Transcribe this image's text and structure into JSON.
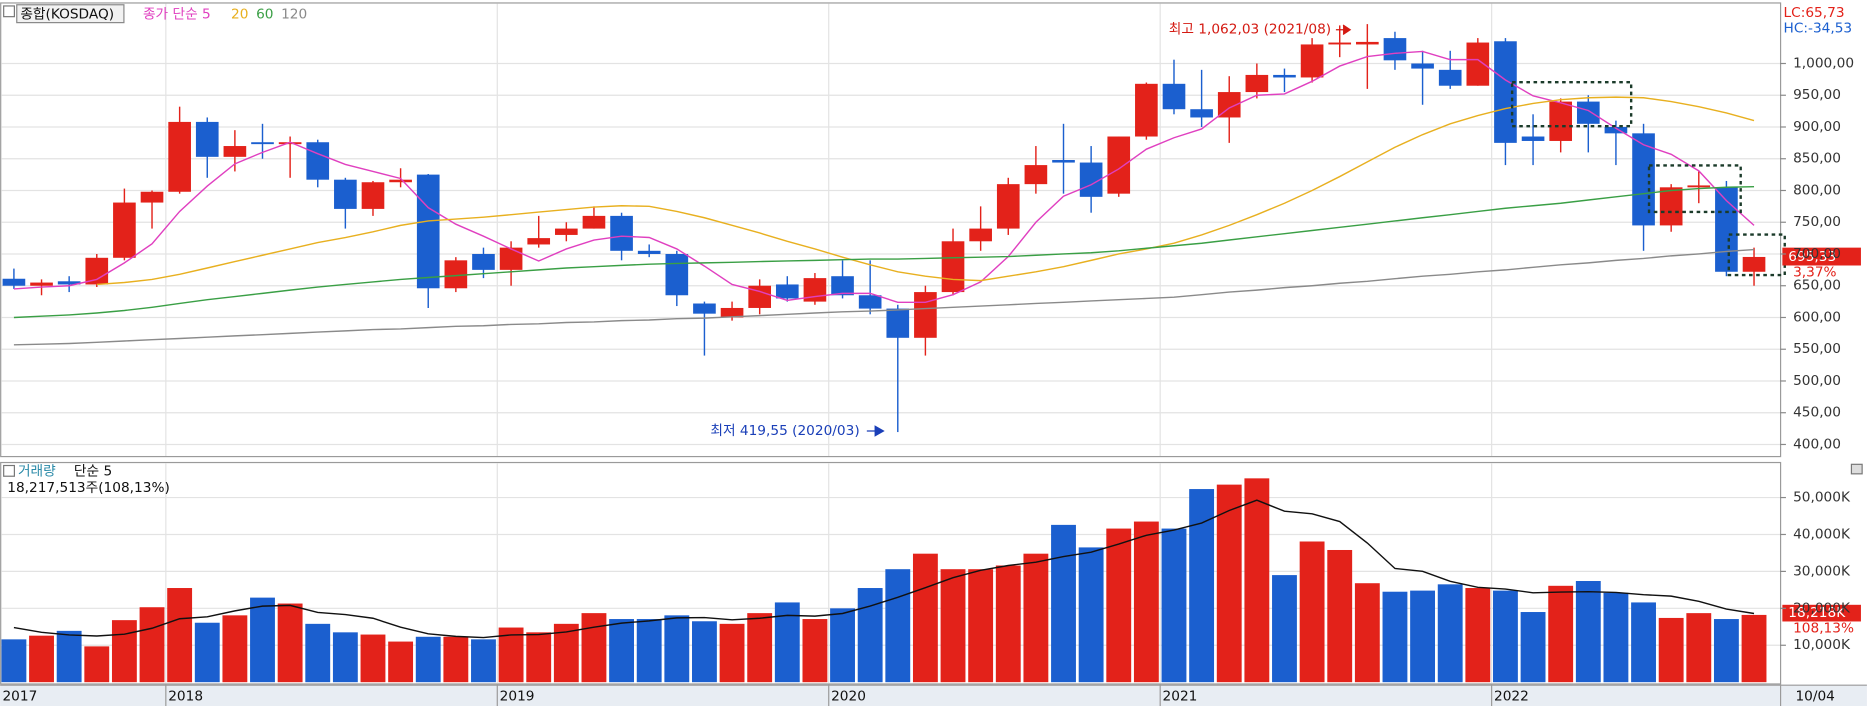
{
  "chart_data": [
    {
      "type": "candlestick",
      "title": "종합(KOSDAQ)",
      "categories": [
        "2017",
        null,
        null,
        null,
        null,
        null,
        "2018",
        null,
        null,
        null,
        null,
        null,
        null,
        null,
        null,
        null,
        null,
        null,
        "2019",
        null,
        null,
        null,
        null,
        null,
        null,
        null,
        null,
        null,
        null,
        null,
        "2020",
        null,
        null,
        null,
        null,
        null,
        null,
        null,
        null,
        null,
        null,
        null,
        "2021",
        null,
        null,
        null,
        null,
        null,
        null,
        null,
        null,
        null,
        null,
        null,
        "2022",
        null,
        null,
        null,
        null,
        null,
        null,
        null,
        null,
        null
      ],
      "last_date": "10/04",
      "open": [
        661,
        650,
        657,
        652,
        694,
        781,
        798,
        908,
        853,
        876,
        873,
        876,
        817,
        771,
        813,
        825,
        646,
        700,
        675,
        715,
        730,
        740,
        760,
        705,
        700,
        622,
        600,
        615,
        652,
        625,
        665,
        635,
        614,
        568,
        640,
        720,
        740,
        810,
        848,
        844,
        795,
        885,
        968,
        928,
        915,
        955,
        982,
        978,
        1030,
        1030,
        1040,
        1000,
        990,
        965,
        1035,
        885,
        878,
        940,
        900,
        890,
        745,
        805,
        805,
        672
      ],
      "high": [
        677,
        660,
        665,
        700,
        803,
        800,
        932,
        915,
        895,
        905,
        885,
        880,
        820,
        815,
        835,
        826,
        695,
        710,
        720,
        760,
        750,
        775,
        765,
        715,
        705,
        625,
        625,
        660,
        665,
        670,
        690,
        690,
        620,
        650,
        740,
        775,
        820,
        870,
        905,
        870,
        885,
        970,
        1006,
        990,
        980,
        1000,
        992,
        1040,
        1060,
        1062.03,
        1050,
        1020,
        1020,
        1040,
        1040,
        920,
        945,
        950,
        910,
        905,
        810,
        830,
        815,
        710
      ],
      "low": [
        645,
        635,
        640,
        648,
        690,
        740,
        795,
        820,
        830,
        850,
        820,
        805,
        740,
        760,
        805,
        615,
        640,
        662,
        650,
        710,
        720,
        740,
        690,
        695,
        618,
        540,
        595,
        605,
        625,
        620,
        630,
        605,
        419.55,
        540,
        635,
        705,
        730,
        795,
        795,
        765,
        790,
        880,
        920,
        900,
        875,
        945,
        955,
        970,
        1010,
        960,
        990,
        935,
        960,
        965,
        840,
        840,
        860,
        860,
        840,
        705,
        735,
        780,
        665,
        650
      ],
      "close": [
        650,
        655,
        652,
        694,
        781,
        798,
        908,
        853,
        870,
        873,
        876,
        817,
        771,
        813,
        817,
        646,
        690,
        675,
        710,
        725,
        740,
        760,
        705,
        700,
        635,
        606,
        615,
        650,
        630,
        662,
        635,
        614,
        568,
        640,
        720,
        740,
        810,
        840,
        844,
        790,
        885,
        968,
        928,
        915,
        955,
        982,
        978,
        1030,
        1033,
        1034,
        1005,
        992,
        965,
        1033,
        875,
        878,
        940,
        905,
        890,
        745,
        805,
        808,
        672,
        695.33
      ],
      "up_color": "#e3221a",
      "down_color": "#1b5fcf",
      "series": [
        {
          "name": "종가 단순 5",
          "color": "#e040c0",
          "values": [
            645,
            648,
            650,
            660,
            686,
            716,
            767,
            807,
            842,
            860,
            876,
            858,
            841,
            830,
            819,
            773,
            747,
            728,
            708,
            689,
            708,
            722,
            728,
            726,
            708,
            681,
            652,
            641,
            627,
            633,
            638,
            638,
            624,
            624,
            636,
            656,
            696,
            750,
            791,
            809,
            834,
            865,
            883,
            897,
            930,
            950,
            952,
            972,
            996,
            1011,
            1016,
            1019,
            1006,
            1006,
            974,
            949,
            938,
            926,
            898,
            872,
            857,
            831,
            784,
            745
          ]
        },
        {
          "name": "20",
          "color": "#e8b020",
          "values": [
            null,
            null,
            null,
            652,
            655,
            660,
            668,
            678,
            688,
            698,
            708,
            718,
            726,
            735,
            745,
            752,
            755,
            758,
            762,
            766,
            770,
            774,
            776,
            775,
            767,
            757,
            745,
            733,
            720,
            708,
            695,
            683,
            672,
            665,
            660,
            658,
            665,
            672,
            680,
            690,
            700,
            708,
            717,
            730,
            745,
            762,
            780,
            800,
            822,
            845,
            868,
            888,
            905,
            918,
            929,
            937,
            943,
            946,
            947,
            946,
            940,
            932,
            922,
            910
          ]
        },
        {
          "name": "60",
          "color": "#3a9f45",
          "values": [
            600,
            602,
            604,
            607,
            611,
            616,
            622,
            628,
            633,
            638,
            643,
            648,
            652,
            656,
            660,
            663,
            666,
            669,
            672,
            675,
            678,
            680,
            682,
            684,
            685,
            686,
            687,
            688,
            689,
            690,
            691,
            692,
            692,
            693,
            694,
            695,
            696,
            698,
            700,
            702,
            705,
            709,
            713,
            717,
            722,
            727,
            732,
            737,
            742,
            747,
            752,
            757,
            762,
            767,
            772,
            776,
            780,
            785,
            790,
            795,
            800,
            803,
            805,
            806
          ]
        },
        {
          "name": "120",
          "color": "#8a8a8a",
          "values": [
            557,
            558,
            559,
            561,
            563,
            565,
            567,
            569,
            571,
            573,
            575,
            577,
            579,
            581,
            582,
            584,
            586,
            587,
            589,
            590,
            592,
            593,
            595,
            596,
            598,
            599,
            601,
            603,
            605,
            607,
            609,
            610,
            612,
            614,
            616,
            618,
            620,
            622,
            624,
            626,
            628,
            630,
            632,
            636,
            640,
            643,
            647,
            650,
            654,
            657,
            661,
            665,
            668,
            672,
            675,
            679,
            683,
            686,
            690,
            693,
            697,
            700,
            704,
            707
          ]
        }
      ],
      "ylim": [
        380,
        1100
      ],
      "yticks": [
        {
          "value": 400,
          "label": "400,00"
        },
        {
          "value": 450,
          "label": "450,00"
        },
        {
          "value": 500,
          "label": "500,00"
        },
        {
          "value": 550,
          "label": "550,00"
        },
        {
          "value": 600,
          "label": "600,00"
        },
        {
          "value": 650,
          "label": "650,00"
        },
        {
          "value": 700,
          "label": "700,00"
        },
        {
          "value": 750,
          "label": "750,00"
        },
        {
          "value": 800,
          "label": "800,00"
        },
        {
          "value": 850,
          "label": "850,00"
        },
        {
          "value": 900,
          "label": "900,00"
        },
        {
          "value": 950,
          "label": "950,00"
        },
        {
          "value": 1000,
          "label": "1,000,00"
        }
      ],
      "grid": true,
      "high_label": "최고 1,062,03 (2021/08)",
      "low_label": "최저 419,55 (2020/03)",
      "last_label": "695,33",
      "last_change": "3,37%",
      "lc_label": "LC:65,73",
      "hc_label": "HC:-34,53"
    },
    {
      "type": "bar",
      "title": "거래량",
      "subtitle": "18,217,513주(108,13%)",
      "up_color": "#e3221a",
      "down_color": "#1b5fcf",
      "values": [
        11600,
        12600,
        13900,
        9700,
        16800,
        20300,
        25500,
        16100,
        18100,
        22900,
        21300,
        15800,
        13500,
        12900,
        11000,
        12300,
        12300,
        11600,
        14800,
        13500,
        15800,
        18700,
        17100,
        17100,
        18100,
        16500,
        15800,
        18700,
        21600,
        17100,
        20000,
        25500,
        30600,
        34800,
        30600,
        30600,
        31600,
        34800,
        42600,
        36500,
        41600,
        43500,
        41600,
        52300,
        53500,
        55200,
        29000,
        38100,
        35800,
        26800,
        24500,
        24800,
        26500,
        25500,
        24800,
        19000,
        26100,
        27400,
        24200,
        21600,
        17400,
        18700,
        17100,
        18218
      ],
      "value_labels_last": "18,218K",
      "last_change": "108,13%",
      "series": [
        {
          "name": "단순 5",
          "color": "#111111",
          "values": [
            14800,
            13500,
            12800,
            12500,
            13000,
            14600,
            17200,
            17700,
            19300,
            20600,
            20800,
            18900,
            18300,
            17300,
            14900,
            13100,
            12400,
            12100,
            12800,
            12900,
            13600,
            14900,
            16000,
            16600,
            17400,
            17500,
            16900,
            17300,
            18100,
            17900,
            18600,
            20600,
            23000,
            25600,
            28300,
            30300,
            31600,
            32500,
            34000,
            35200,
            37400,
            39800,
            41200,
            43100,
            46500,
            49300,
            46300,
            45600,
            43500,
            37700,
            30800,
            30000,
            27300,
            25700,
            25200,
            24200,
            24400,
            24500,
            24300,
            23700,
            23300,
            21900,
            19800,
            18600
          ]
        }
      ],
      "ylim": [
        0,
        59000
      ],
      "yticks": [
        {
          "value": 10000,
          "label": "10,000K"
        },
        {
          "value": 20000,
          "label": "20,000K"
        },
        {
          "value": 30000,
          "label": "30,000K"
        },
        {
          "value": 40000,
          "label": "40,000K"
        },
        {
          "value": 50000,
          "label": "50,000K"
        }
      ],
      "grid": true
    }
  ]
}
